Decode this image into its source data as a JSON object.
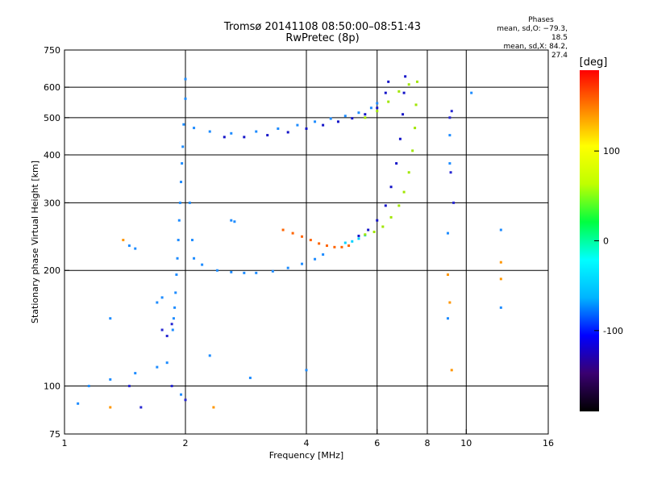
{
  "header": {
    "title": "Tromsø 20141108 08:50:00–08:51:43",
    "subtitle": "RwPretec (8p)"
  },
  "phases": {
    "heading": "Phases",
    "line_o": "mean, sd,O: −79.3, 18.5",
    "line_x": "mean, sd,X:  84.2, 27.4"
  },
  "colorbar": {
    "label": "[deg]",
    "ticks": [
      100,
      0,
      -100
    ],
    "range": [
      -190,
      190
    ],
    "colors": [
      "#000000",
      "#3a0070",
      "#0000ff",
      "#00b4ff",
      "#00ffff",
      "#00ff40",
      "#c0ff00",
      "#ffff00",
      "#ff8000",
      "#ff0000"
    ]
  },
  "chart_data": {
    "type": "scatter",
    "xlabel": "Frequency [MHz]",
    "ylabel": "Stationary phase Virtual Height [km]",
    "x_scale": "log",
    "y_scale": "log",
    "xlim": [
      1,
      16
    ],
    "ylim": [
      75,
      750
    ],
    "x_ticks": [
      1,
      2,
      4,
      6,
      8,
      10,
      16
    ],
    "y_ticks": [
      75,
      100,
      200,
      300,
      400,
      500,
      600,
      750
    ],
    "grid_x": [
      2,
      4,
      6,
      8,
      10
    ],
    "grid_y": [
      100,
      200,
      300,
      400,
      500,
      600
    ],
    "series": [
      {
        "color": "#1e8cff",
        "points": [
          [
            2.0,
            630
          ],
          [
            2.0,
            560
          ],
          [
            1.98,
            480
          ],
          [
            1.97,
            420
          ],
          [
            1.96,
            380
          ],
          [
            1.95,
            340
          ],
          [
            1.94,
            300
          ],
          [
            1.93,
            270
          ],
          [
            1.92,
            240
          ],
          [
            1.91,
            215
          ],
          [
            1.9,
            195
          ],
          [
            1.89,
            175
          ],
          [
            1.88,
            160
          ],
          [
            1.87,
            150
          ],
          [
            1.86,
            140
          ],
          [
            2.05,
            300
          ],
          [
            2.08,
            240
          ],
          [
            2.1,
            215
          ],
          [
            2.2,
            207
          ],
          [
            2.4,
            200
          ],
          [
            2.6,
            198
          ],
          [
            2.8,
            197
          ],
          [
            3.0,
            197
          ],
          [
            3.3,
            199
          ],
          [
            3.6,
            203
          ],
          [
            3.9,
            208
          ],
          [
            4.2,
            214
          ],
          [
            4.4,
            220
          ]
        ]
      },
      {
        "color": "#ff6400",
        "points": [
          [
            3.5,
            255
          ],
          [
            3.7,
            250
          ],
          [
            3.9,
            245
          ],
          [
            4.1,
            240
          ],
          [
            4.3,
            235
          ],
          [
            4.5,
            232
          ],
          [
            4.7,
            230
          ],
          [
            4.9,
            230
          ],
          [
            5.1,
            232
          ]
        ]
      },
      {
        "color": "#00d2ff",
        "points": [
          [
            5.0,
            236
          ],
          [
            5.2,
            238
          ],
          [
            5.4,
            242
          ],
          [
            5.6,
            247
          ]
        ]
      },
      {
        "color": "#a0e600",
        "points": [
          [
            5.6,
            248
          ],
          [
            5.9,
            252
          ],
          [
            6.2,
            260
          ],
          [
            6.5,
            275
          ],
          [
            6.8,
            295
          ],
          [
            7.0,
            320
          ],
          [
            7.2,
            360
          ],
          [
            7.35,
            410
          ],
          [
            7.45,
            470
          ],
          [
            7.5,
            540
          ],
          [
            7.55,
            620
          ]
        ]
      },
      {
        "color": "#1414c8",
        "points": [
          [
            5.4,
            246
          ],
          [
            5.7,
            255
          ],
          [
            6.0,
            270
          ],
          [
            6.3,
            295
          ],
          [
            6.5,
            330
          ],
          [
            6.7,
            380
          ],
          [
            6.85,
            440
          ],
          [
            6.95,
            510
          ],
          [
            7.0,
            580
          ],
          [
            7.05,
            640
          ]
        ]
      },
      {
        "color": "#1e8cff",
        "points": [
          [
            2.1,
            470
          ],
          [
            2.3,
            460
          ],
          [
            2.6,
            455
          ],
          [
            3.0,
            460
          ],
          [
            3.4,
            468
          ],
          [
            3.8,
            478
          ],
          [
            4.2,
            488
          ],
          [
            4.6,
            497
          ],
          [
            5.0,
            505
          ],
          [
            5.4,
            515
          ],
          [
            5.8,
            530
          ],
          [
            6.0,
            545
          ]
        ]
      },
      {
        "color": "#1414c8",
        "points": [
          [
            2.5,
            445
          ],
          [
            2.8,
            445
          ],
          [
            3.2,
            450
          ],
          [
            3.6,
            458
          ],
          [
            4.0,
            468
          ],
          [
            4.4,
            478
          ],
          [
            4.8,
            488
          ],
          [
            5.2,
            498
          ],
          [
            5.6,
            510
          ],
          [
            6.0,
            530
          ],
          [
            6.3,
            580
          ],
          [
            6.4,
            620
          ]
        ]
      },
      {
        "color": "#a0e600",
        "points": [
          [
            5.6,
            500
          ],
          [
            6.0,
            520
          ],
          [
            6.4,
            550
          ],
          [
            6.8,
            585
          ],
          [
            7.2,
            610
          ]
        ]
      },
      {
        "color": "#1e8cff",
        "points": [
          [
            1.15,
            100
          ],
          [
            1.3,
            104
          ],
          [
            1.5,
            108
          ],
          [
            1.7,
            112
          ],
          [
            1.8,
            115
          ],
          [
            1.5,
            228
          ],
          [
            1.45,
            232
          ],
          [
            1.3,
            150
          ],
          [
            1.7,
            165
          ],
          [
            1.75,
            170
          ],
          [
            2.6,
            270
          ],
          [
            2.65,
            268
          ],
          [
            4.0,
            110
          ],
          [
            2.3,
            120
          ],
          [
            2.9,
            105
          ],
          [
            9.0,
            250
          ],
          [
            9.0,
            150
          ],
          [
            12.2,
            255
          ],
          [
            12.2,
            160
          ],
          [
            10.3,
            580
          ],
          [
            9.1,
            450
          ],
          [
            9.1,
            380
          ],
          [
            1.08,
            90
          ],
          [
            1.95,
            95
          ]
        ]
      },
      {
        "color": "#2828d2",
        "points": [
          [
            1.75,
            140
          ],
          [
            1.8,
            135
          ],
          [
            1.85,
            145
          ],
          [
            1.45,
            100
          ],
          [
            1.55,
            88
          ],
          [
            1.85,
            100
          ],
          [
            2.0,
            92
          ],
          [
            9.1,
            500
          ],
          [
            9.2,
            520
          ],
          [
            9.15,
            360
          ],
          [
            9.3,
            300
          ]
        ]
      },
      {
        "color": "#ff9600",
        "points": [
          [
            1.4,
            240
          ],
          [
            2.35,
            88
          ],
          [
            1.3,
            88
          ],
          [
            9.2,
            110
          ],
          [
            12.2,
            190
          ],
          [
            12.2,
            210
          ],
          [
            9.0,
            195
          ],
          [
            9.1,
            165
          ]
        ]
      }
    ]
  }
}
